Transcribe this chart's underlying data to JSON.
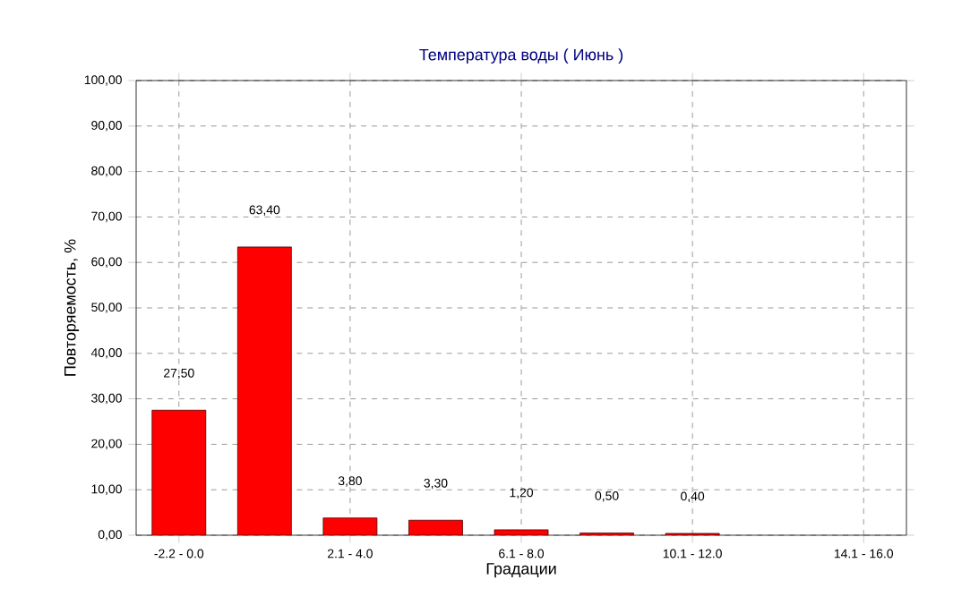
{
  "chart_data": {
    "type": "bar",
    "title": "Температура воды     ( Июнь )",
    "xlabel": "Градации",
    "ylabel": "Повторяемость, %",
    "categories": [
      "-2.2 - 0.0",
      null,
      "2.1 - 4.0",
      null,
      "6.1 - 8.0",
      null,
      "10.1 - 12.0",
      null,
      "14.1 - 16.0"
    ],
    "values": [
      27.5,
      63.4,
      3.8,
      3.3,
      1.2,
      0.5,
      0.4,
      null,
      null
    ],
    "value_labels": [
      "27,50",
      "63,40",
      "3,80",
      "3,30",
      "1,20",
      "0,50",
      "0,40",
      null,
      null
    ],
    "color": "#ff0000",
    "ylim": [
      0,
      100
    ],
    "yticks": [
      {
        "value": 0,
        "label": "0,00"
      },
      {
        "value": 10,
        "label": "10,00"
      },
      {
        "value": 20,
        "label": "20,00"
      },
      {
        "value": 30,
        "label": "30,00"
      },
      {
        "value": 40,
        "label": "40,00"
      },
      {
        "value": 50,
        "label": "50,00"
      },
      {
        "value": 60,
        "label": "60,00"
      },
      {
        "value": 70,
        "label": "70,00"
      },
      {
        "value": 80,
        "label": "80,00"
      },
      {
        "value": 90,
        "label": "90,00"
      },
      {
        "value": 100,
        "label": "100,00"
      }
    ],
    "grid": true
  }
}
